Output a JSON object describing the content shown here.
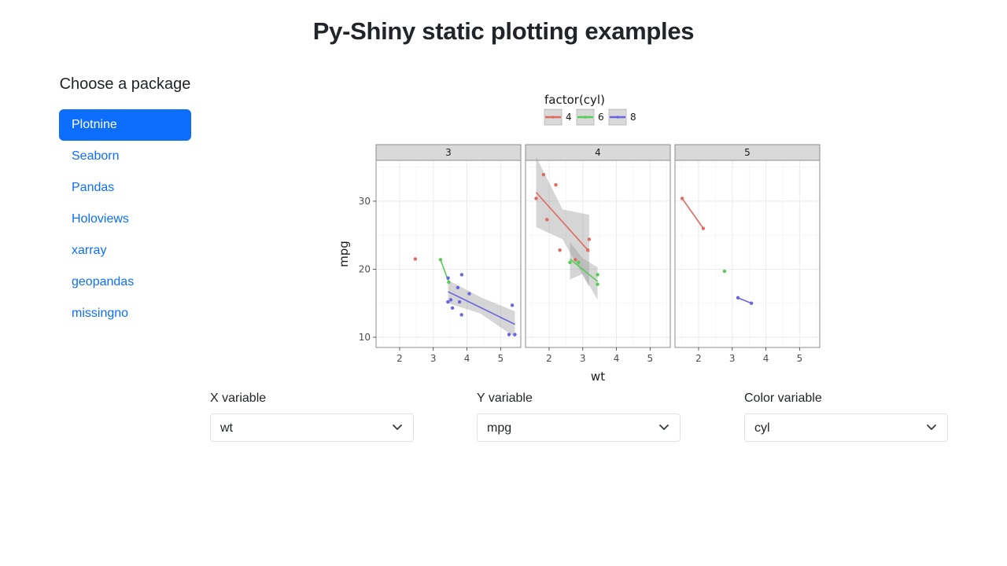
{
  "page": {
    "title": "Py-Shiny static plotting examples"
  },
  "sidebar": {
    "heading": "Choose a package",
    "items": [
      {
        "label": "Plotnine",
        "active": true
      },
      {
        "label": "Seaborn",
        "active": false
      },
      {
        "label": "Pandas",
        "active": false
      },
      {
        "label": "Holoviews",
        "active": false
      },
      {
        "label": "xarray",
        "active": false
      },
      {
        "label": "geopandas",
        "active": false
      },
      {
        "label": "missingno",
        "active": false
      }
    ]
  },
  "controls": [
    {
      "label": "X variable",
      "value": "wt"
    },
    {
      "label": "Y variable",
      "value": "mpg"
    },
    {
      "label": "Color variable",
      "value": "cyl"
    }
  ],
  "chart_data": {
    "type": "scatter",
    "xlabel": "wt",
    "ylabel": "mpg",
    "xlim": [
      1.3,
      5.6
    ],
    "ylim": [
      8.5,
      36
    ],
    "xticks": [
      2,
      3,
      4,
      5
    ],
    "yticks": [
      10,
      20,
      30
    ],
    "grid": true,
    "legend": {
      "title": "factor(cyl)",
      "position": "top",
      "entries": [
        {
          "label": "4",
          "color": "#e06a62"
        },
        {
          "label": "6",
          "color": "#55cc55"
        },
        {
          "label": "8",
          "color": "#6a64e0"
        }
      ]
    },
    "facets": [
      {
        "label": "3",
        "series": [
          {
            "name": "4",
            "color": "#e06a62",
            "points": [
              [
                2.465,
                21.5
              ]
            ],
            "fit": null
          },
          {
            "name": "6",
            "color": "#55cc55",
            "points": [
              [
                3.215,
                21.4
              ],
              [
                3.46,
                18.1
              ]
            ],
            "fit": [
              [
                3.215,
                21.4
              ],
              [
                3.46,
                18.1
              ]
            ],
            "band": null
          },
          {
            "name": "8",
            "color": "#6a64e0",
            "points": [
              [
                3.44,
                18.7
              ],
              [
                3.57,
                14.3
              ],
              [
                4.07,
                16.4
              ],
              [
                3.73,
                17.3
              ],
              [
                3.78,
                15.2
              ],
              [
                5.25,
                10.4
              ],
              [
                5.424,
                10.4
              ],
              [
                5.345,
                14.7
              ],
              [
                3.52,
                15.5
              ],
              [
                3.435,
                15.2
              ],
              [
                3.84,
                13.3
              ],
              [
                3.845,
                19.2
              ]
            ],
            "fit": [
              [
                3.44,
                16.7
              ],
              [
                5.424,
                11.9
              ]
            ],
            "band": [
              [
                3.44,
                18.4,
                15.0
              ],
              [
                4.4,
                15.9,
                13.5
              ],
              [
                5.424,
                13.8,
                10.0
              ]
            ]
          }
        ]
      },
      {
        "label": "4",
        "series": [
          {
            "name": "4",
            "color": "#e06a62",
            "points": [
              [
                2.32,
                22.8
              ],
              [
                3.19,
                24.4
              ],
              [
                3.15,
                22.8
              ],
              [
                2.2,
                32.4
              ],
              [
                1.615,
                30.4
              ],
              [
                1.835,
                33.9
              ],
              [
                1.935,
                27.3
              ],
              [
                2.78,
                21.4
              ]
            ],
            "fit": [
              [
                1.615,
                31.3
              ],
              [
                3.19,
                22.6
              ]
            ],
            "band": [
              [
                1.615,
                36.5,
                26.2
              ],
              [
                2.4,
                28.8,
                24.4
              ],
              [
                3.19,
                28.0,
                17.4
              ]
            ]
          },
          {
            "name": "6",
            "color": "#55cc55",
            "points": [
              [
                2.62,
                21.0
              ],
              [
                2.875,
                21.0
              ],
              [
                3.44,
                19.2
              ],
              [
                3.44,
                17.8
              ]
            ],
            "fit": [
              [
                2.62,
                21.5
              ],
              [
                3.44,
                18.2
              ]
            ],
            "band": [
              [
                2.62,
                24.0,
                18.5
              ],
              [
                3.0,
                21.6,
                19.3
              ],
              [
                3.44,
                20.3,
                15.5
              ]
            ]
          }
        ]
      },
      {
        "label": "5",
        "series": [
          {
            "name": "4",
            "color": "#e06a62",
            "points": [
              [
                1.513,
                30.4
              ],
              [
                2.14,
                26.0
              ]
            ],
            "fit": [
              [
                1.513,
                30.4
              ],
              [
                2.14,
                26.0
              ]
            ],
            "band": null
          },
          {
            "name": "6",
            "color": "#55cc55",
            "points": [
              [
                2.77,
                19.7
              ]
            ],
            "fit": null,
            "band": null
          },
          {
            "name": "8",
            "color": "#6a64e0",
            "points": [
              [
                3.17,
                15.8
              ],
              [
                3.57,
                15.0
              ]
            ],
            "fit": [
              [
                3.17,
                15.8
              ],
              [
                3.57,
                15.0
              ]
            ],
            "band": null
          }
        ]
      }
    ]
  }
}
